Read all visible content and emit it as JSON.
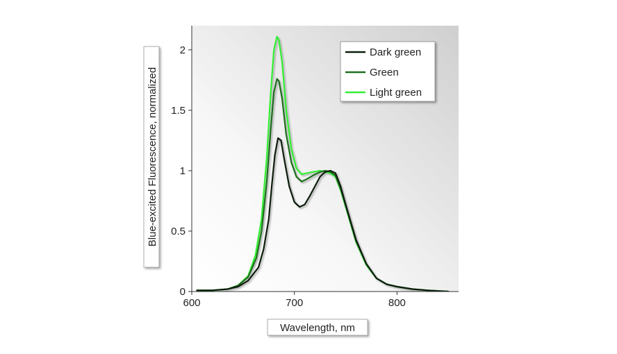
{
  "chart_data": {
    "type": "line",
    "title": "",
    "xlabel": "Wavelength, nm",
    "ylabel": "Blue-excited Fluorescence, normalized",
    "xlim": [
      600,
      860
    ],
    "ylim": [
      0,
      2.2
    ],
    "xticks": [
      600,
      700,
      800
    ],
    "yticks": [
      0,
      0.5,
      1,
      1.5,
      2
    ],
    "xtick_labels": [
      "600",
      "700",
      "800"
    ],
    "ytick_labels": [
      "0",
      "0.5",
      "1",
      "1.5",
      "2"
    ],
    "legend_position": "top-right",
    "grid": false,
    "series": [
      {
        "name": "Dark green",
        "color": "#0a1f0a",
        "x": [
          605,
          620,
          635,
          645,
          655,
          665,
          670,
          675,
          678,
          681,
          684,
          687,
          690,
          695,
          700,
          705,
          710,
          715,
          720,
          725,
          730,
          735,
          740,
          745,
          750,
          760,
          770,
          780,
          790,
          800,
          815,
          830,
          850
        ],
        "y": [
          0.01,
          0.01,
          0.02,
          0.04,
          0.09,
          0.2,
          0.35,
          0.6,
          0.88,
          1.13,
          1.27,
          1.25,
          1.1,
          0.87,
          0.74,
          0.7,
          0.72,
          0.79,
          0.87,
          0.95,
          0.99,
          1.0,
          0.98,
          0.87,
          0.72,
          0.43,
          0.23,
          0.11,
          0.06,
          0.04,
          0.02,
          0.01,
          0.0
        ]
      },
      {
        "name": "Green",
        "color": "#1e6e1e",
        "x": [
          605,
          620,
          635,
          645,
          655,
          663,
          668,
          673,
          677,
          680,
          683,
          685,
          688,
          692,
          697,
          702,
          707,
          712,
          718,
          725,
          730,
          735,
          740,
          745,
          750,
          760,
          770,
          780,
          790,
          800,
          815,
          830,
          850
        ],
        "y": [
          0.01,
          0.01,
          0.02,
          0.05,
          0.12,
          0.28,
          0.5,
          0.9,
          1.35,
          1.65,
          1.76,
          1.74,
          1.6,
          1.3,
          1.07,
          0.95,
          0.91,
          0.93,
          0.96,
          0.99,
          1.0,
          0.99,
          0.96,
          0.85,
          0.71,
          0.42,
          0.23,
          0.11,
          0.06,
          0.04,
          0.02,
          0.01,
          0.0
        ]
      },
      {
        "name": "Light green",
        "color": "#33ee33",
        "x": [
          605,
          620,
          635,
          645,
          655,
          662,
          668,
          673,
          677,
          680,
          683,
          685,
          688,
          692,
          697,
          702,
          707,
          712,
          718,
          725,
          730,
          735,
          740,
          745,
          750,
          760,
          770,
          780,
          790,
          800,
          815,
          830,
          850
        ],
        "y": [
          0.01,
          0.01,
          0.02,
          0.05,
          0.13,
          0.3,
          0.6,
          1.1,
          1.65,
          2.0,
          2.11,
          2.08,
          1.9,
          1.5,
          1.18,
          1.02,
          0.97,
          0.98,
          0.99,
          1.0,
          0.99,
          0.98,
          0.95,
          0.84,
          0.7,
          0.41,
          0.22,
          0.11,
          0.06,
          0.04,
          0.02,
          0.01,
          0.0
        ]
      }
    ]
  }
}
